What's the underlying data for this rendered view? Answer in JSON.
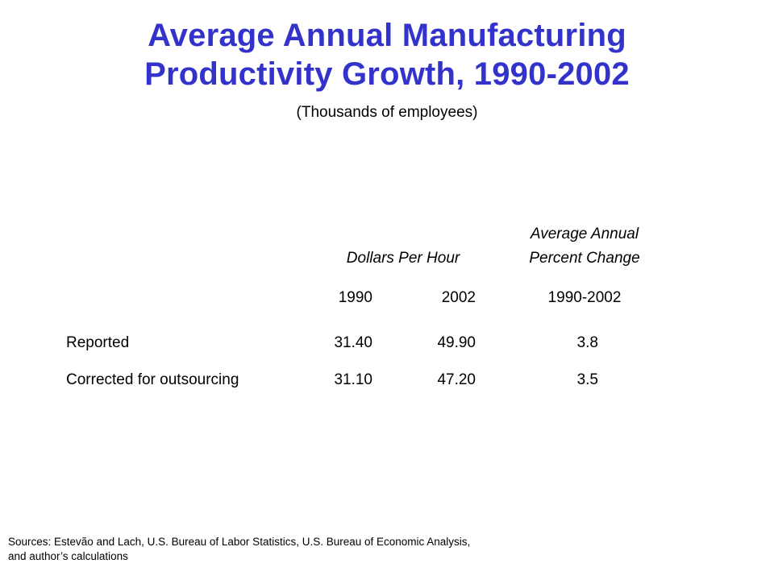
{
  "title": {
    "line1": "Average Annual Manufacturing",
    "line2": "Productivity Growth, 1990-2002"
  },
  "subtitle": "(Thousands of employees)",
  "table": {
    "header_dollars": "Dollars Per Hour",
    "header_change_line1": "Average Annual",
    "header_change_line2": "Percent Change",
    "years": [
      "1990",
      "2002",
      "1990-2002"
    ],
    "rows": [
      {
        "label": "Reported",
        "v1990": "31.40",
        "v2002": "49.90",
        "change": "3.8"
      },
      {
        "label": "Corrected for outsourcing",
        "v1990": "31.10",
        "v2002": "47.20",
        "change": "3.5"
      }
    ]
  },
  "sources": {
    "line1": "Sources: Estevão and Lach, U.S. Bureau of Labor Statistics, U.S. Bureau of Economic Analysis,",
    "line2": "and author’s calculations"
  },
  "colors": {
    "title": "#3333cc",
    "text": "#000000",
    "background": "#ffffff"
  }
}
